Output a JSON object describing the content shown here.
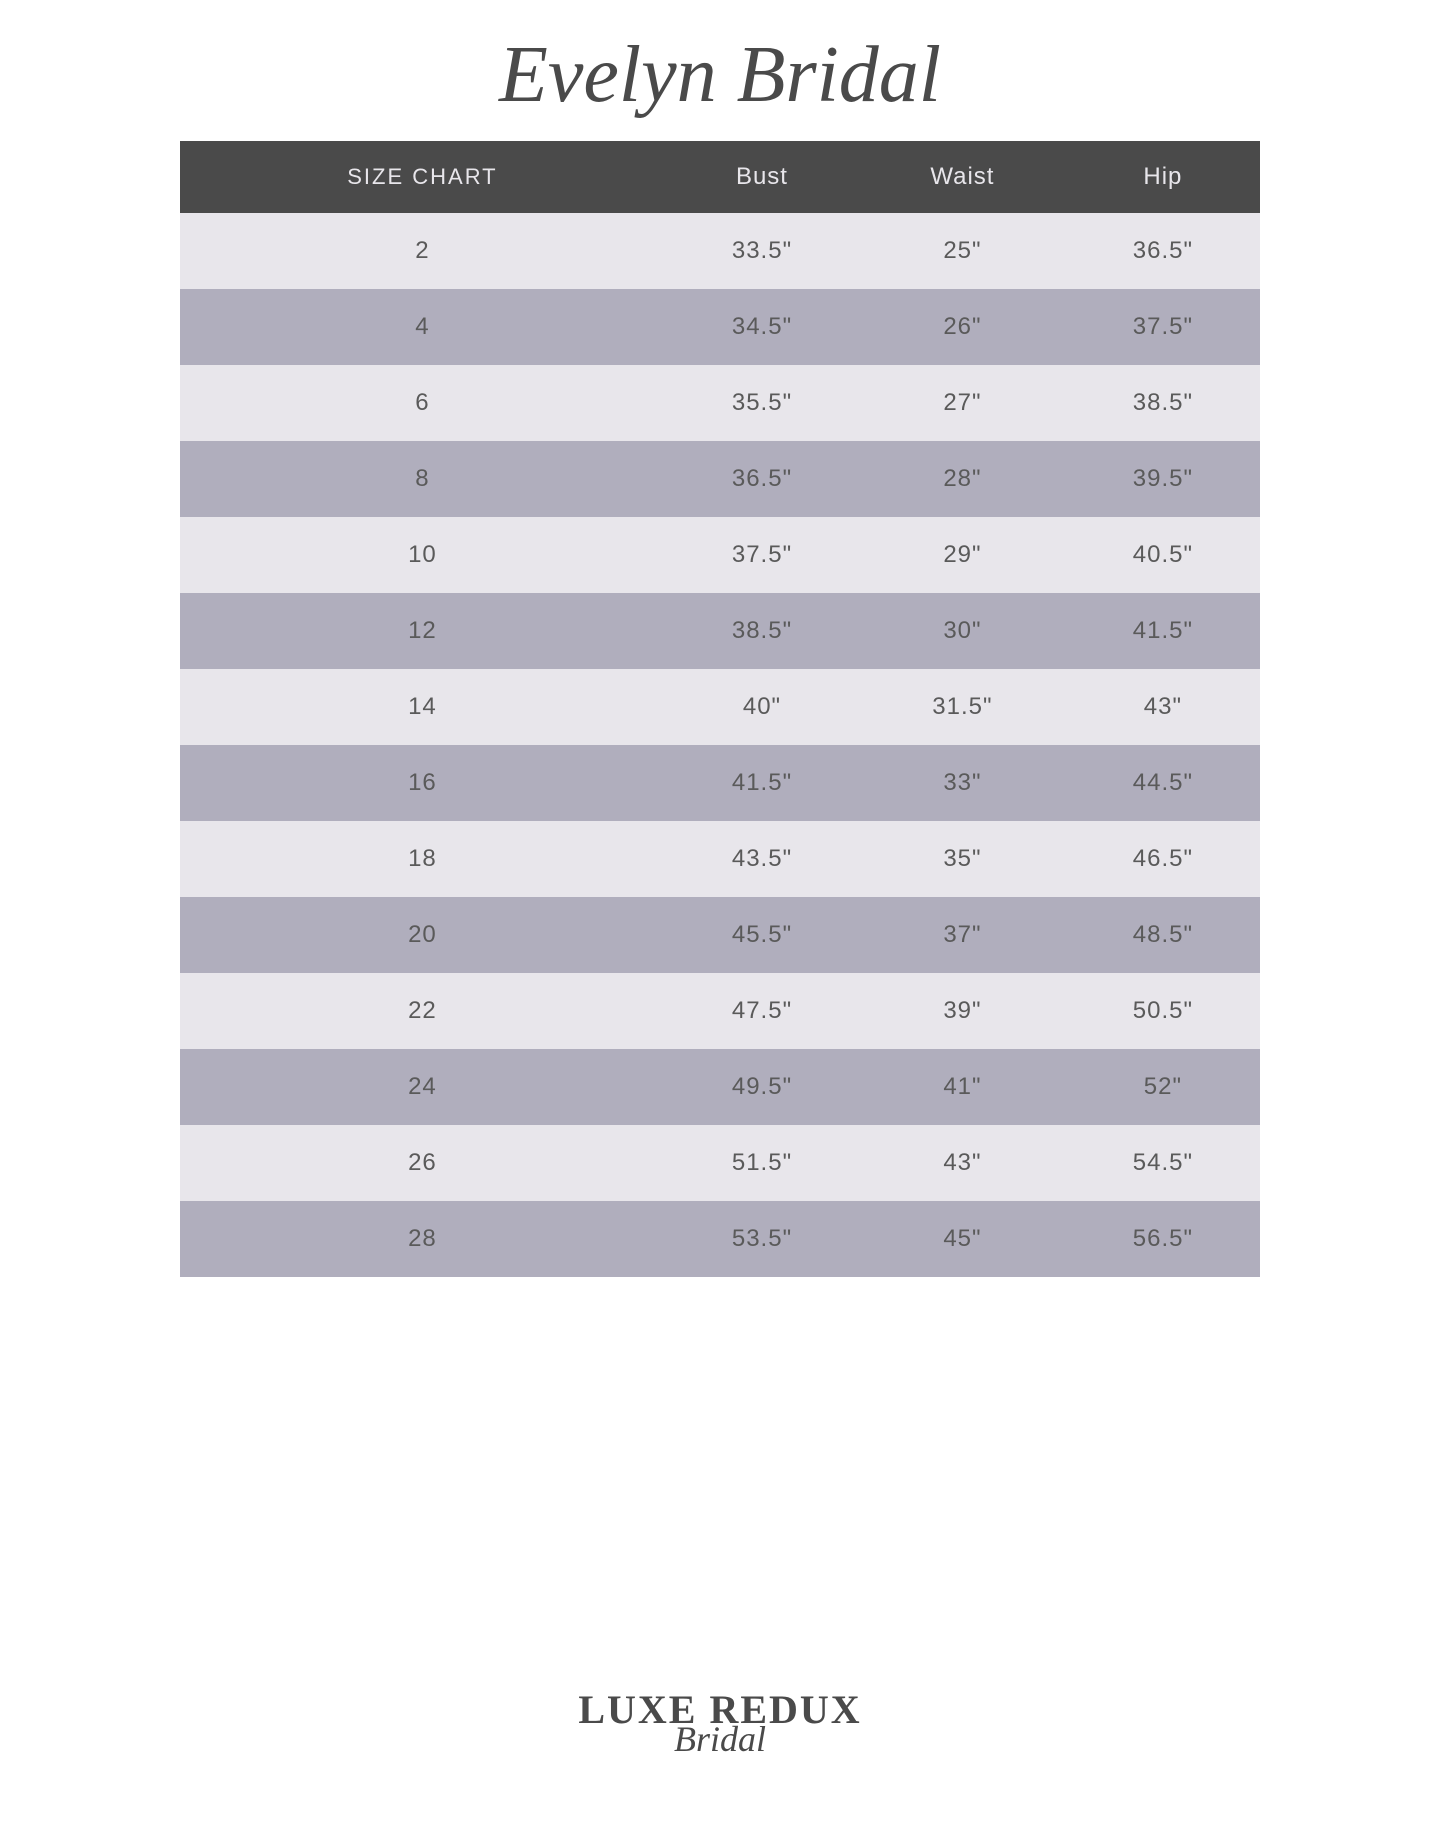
{
  "title": "Evelyn Bridal",
  "table": {
    "columns": [
      "SIZE CHART",
      "Bust",
      "Waist",
      "Hip"
    ],
    "rows": [
      [
        "2",
        "33.5\"",
        "25\"",
        "36.5\""
      ],
      [
        "4",
        "34.5\"",
        "26\"",
        "37.5\""
      ],
      [
        "6",
        "35.5\"",
        "27\"",
        "38.5\""
      ],
      [
        "8",
        "36.5\"",
        "28\"",
        "39.5\""
      ],
      [
        "10",
        "37.5\"",
        "29\"",
        "40.5\""
      ],
      [
        "12",
        "38.5\"",
        "30\"",
        "41.5\""
      ],
      [
        "14",
        "40\"",
        "31.5\"",
        "43\""
      ],
      [
        "16",
        "41.5\"",
        "33\"",
        "44.5\""
      ],
      [
        "18",
        "43.5\"",
        "35\"",
        "46.5\""
      ],
      [
        "20",
        "45.5\"",
        "37\"",
        "48.5\""
      ],
      [
        "22",
        "47.5\"",
        "39\"",
        "50.5\""
      ],
      [
        "24",
        "49.5\"",
        "41\"",
        "52\""
      ],
      [
        "26",
        "51.5\"",
        "43\"",
        "54.5\""
      ],
      [
        "28",
        "53.5\"",
        "45\"",
        "56.5\""
      ]
    ],
    "header_bg": "#4a4a4a",
    "header_text_color": "#e8e6eb",
    "row_light_bg": "#e8e6eb",
    "row_dark_bg": "#b0aebd",
    "cell_text_color": "#5a5a5a",
    "header_fontsize": 24,
    "cell_fontsize": 24,
    "col_widths": [
      "25%",
      "25%",
      "25%",
      "25%"
    ]
  },
  "footer": {
    "main": "LUXE REDUX",
    "sub": "Bridal"
  },
  "background_color": "#ffffff"
}
